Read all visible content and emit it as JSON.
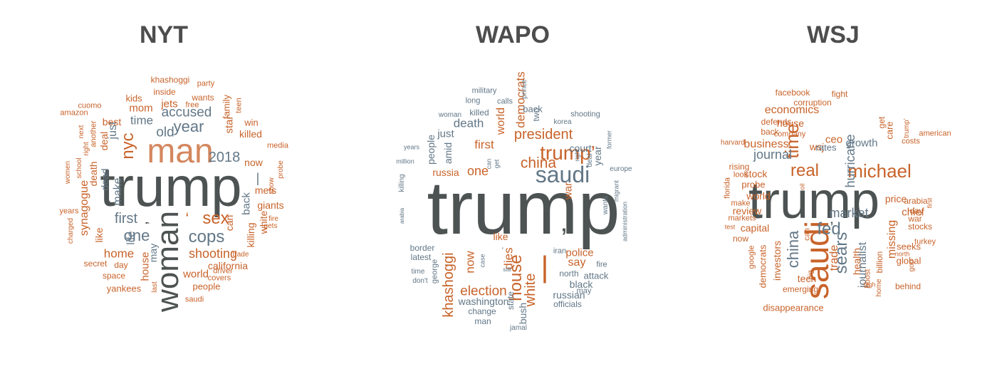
{
  "colors": {
    "orange": "#c8632a",
    "slate": "#627787",
    "dark": "#4d5352",
    "peach": "#d4875e"
  },
  "panels": [
    {
      "title": "NYT",
      "words": [
        {
          "t": "trump",
          "c": "dark"
        },
        {
          "t": "man",
          "c": "peach"
        },
        {
          "t": "woman",
          "c": "dark"
        },
        {
          "t": "sex",
          "c": "orange"
        },
        {
          "t": "cops",
          "c": "slate"
        },
        {
          "t": "‘",
          "c": "orange"
        },
        {
          "t": "first",
          "c": "slate"
        },
        {
          "t": "’",
          "c": "dark"
        },
        {
          "t": "one",
          "c": "slate"
        },
        {
          "t": "nyc",
          "c": "orange"
        },
        {
          "t": "year",
          "c": "slate"
        },
        {
          "t": "accused",
          "c": "slate"
        },
        {
          "t": "old",
          "c": "slate"
        },
        {
          "t": "2018",
          "c": "slate"
        },
        {
          "t": "time",
          "c": "slate"
        },
        {
          "t": "shooting",
          "c": "orange"
        },
        {
          "t": "home",
          "c": "orange"
        },
        {
          "t": "world",
          "c": "orange"
        },
        {
          "t": "california",
          "c": "orange"
        },
        {
          "t": "people",
          "c": "orange"
        },
        {
          "t": "synagogue",
          "c": "orange"
        },
        {
          "t": "death",
          "c": "orange"
        },
        {
          "t": "dead",
          "c": "slate"
        },
        {
          "t": "deal",
          "c": "orange"
        },
        {
          "t": "make",
          "c": "slate"
        },
        {
          "t": "just",
          "c": "slate"
        },
        {
          "t": "life",
          "c": "slate"
        },
        {
          "t": "like",
          "c": "orange"
        },
        {
          "t": "house",
          "c": "orange"
        },
        {
          "t": "may",
          "c": "slate"
        },
        {
          "t": "back",
          "c": "slate"
        },
        {
          "t": "|",
          "c": "slate"
        },
        {
          "t": "killing",
          "c": "orange"
        },
        {
          "t": "white",
          "c": "orange"
        },
        {
          "t": "giants",
          "c": "orange"
        },
        {
          "t": "mets",
          "c": "orange"
        },
        {
          "t": "can",
          "c": "orange"
        },
        {
          "t": "now",
          "c": "orange"
        },
        {
          "t": "star",
          "c": "orange"
        },
        {
          "t": "killed",
          "c": "orange"
        },
        {
          "t": "family",
          "c": "orange"
        },
        {
          "t": "teen",
          "c": "orange"
        },
        {
          "t": "win",
          "c": "orange"
        },
        {
          "t": "jets",
          "c": "orange"
        },
        {
          "t": "mom",
          "c": "orange"
        },
        {
          "t": "best",
          "c": "orange"
        },
        {
          "t": "kids",
          "c": "orange"
        },
        {
          "t": "inside",
          "c": "orange"
        },
        {
          "t": "wants",
          "c": "orange"
        },
        {
          "t": "free",
          "c": "orange"
        },
        {
          "t": "khashoggi",
          "c": "orange"
        },
        {
          "t": "party",
          "c": "orange"
        },
        {
          "t": "cuomo",
          "c": "orange"
        },
        {
          "t": "amazon",
          "c": "orange"
        },
        {
          "t": "another",
          "c": "orange"
        },
        {
          "t": "next",
          "c": "orange"
        },
        {
          "t": "right",
          "c": "orange"
        },
        {
          "t": "school",
          "c": "orange"
        },
        {
          "t": "women",
          "c": "orange"
        },
        {
          "t": "years",
          "c": "orange"
        },
        {
          "t": "charged",
          "c": "orange"
        },
        {
          "t": "secret",
          "c": "orange"
        },
        {
          "t": "day",
          "c": "orange"
        },
        {
          "t": "space",
          "c": "orange"
        },
        {
          "t": "yankees",
          "c": "orange"
        },
        {
          "t": "last",
          "c": "orange"
        },
        {
          "t": "saudi",
          "c": "orange"
        },
        {
          "t": "covers",
          "c": "orange"
        },
        {
          "t": "driver",
          "c": "orange"
        },
        {
          "t": "trade",
          "c": "orange"
        },
        {
          "t": "fire",
          "c": "orange"
        },
        {
          "t": "gets",
          "c": "orange"
        },
        {
          "t": "show",
          "c": "orange"
        },
        {
          "t": "probe",
          "c": "orange"
        },
        {
          "t": "media",
          "c": "orange"
        }
      ]
    },
    {
      "title": "WAPO",
      "words": [
        {
          "t": "trump",
          "c": "dark"
        },
        {
          "t": "saudi",
          "c": "slate"
        },
        {
          "t": "trump’",
          "c": "orange"
        },
        {
          "t": "china",
          "c": "orange"
        },
        {
          "t": "president",
          "c": "orange"
        },
        {
          "t": "’",
          "c": "dark"
        },
        {
          "t": "house",
          "c": "orange"
        },
        {
          "t": "white",
          "c": "orange"
        },
        {
          "t": "|",
          "c": "orange"
        },
        {
          "t": "election",
          "c": "orange"
        },
        {
          "t": "khashoggi",
          "c": "orange"
        },
        {
          "t": "now",
          "c": "orange"
        },
        {
          "t": "dies",
          "c": "orange"
        },
        {
          "t": "police",
          "c": "orange"
        },
        {
          "t": "say",
          "c": "orange"
        },
        {
          "t": "one",
          "c": "orange"
        },
        {
          "t": "first",
          "c": "orange"
        },
        {
          "t": "death",
          "c": "slate"
        },
        {
          "t": "democrats",
          "c": "orange"
        },
        {
          "t": "world",
          "c": "orange"
        },
        {
          "t": "war",
          "c": "orange"
        },
        {
          "t": "back",
          "c": "slate"
        },
        {
          "t": "court",
          "c": "slate"
        },
        {
          "t": "russia",
          "c": "orange"
        },
        {
          "t": "just",
          "c": "slate"
        },
        {
          "t": "amid",
          "c": "slate"
        },
        {
          "t": "people",
          "c": "slate"
        },
        {
          "t": "killed",
          "c": "slate"
        },
        {
          "t": "two",
          "c": "slate"
        },
        {
          "t": "shooting",
          "c": "slate"
        },
        {
          "t": "korea",
          "c": "slate"
        },
        {
          "t": "military",
          "c": "slate"
        },
        {
          "t": "long",
          "c": "slate"
        },
        {
          "t": "calls",
          "c": "slate"
        },
        {
          "t": "woman",
          "c": "slate"
        },
        {
          "t": "prince",
          "c": "slate"
        },
        {
          "t": "years",
          "c": "slate"
        },
        {
          "t": "million",
          "c": "slate"
        },
        {
          "t": "get",
          "c": "slate"
        },
        {
          "t": "can",
          "c": "slate"
        },
        {
          "t": "killing",
          "c": "slate"
        },
        {
          "t": "arabia",
          "c": "slate"
        },
        {
          "t": "year",
          "c": "slate"
        },
        {
          "t": "right",
          "c": "slate"
        },
        {
          "t": "deal",
          "c": "slate"
        },
        {
          "t": "former",
          "c": "slate"
        },
        {
          "t": "europe",
          "c": "slate"
        },
        {
          "t": "wants",
          "c": "slate"
        },
        {
          "t": "migrant",
          "c": "slate"
        },
        {
          "t": "administration",
          "c": "slate"
        },
        {
          "t": "border",
          "c": "slate"
        },
        {
          "t": "latest",
          "c": "slate"
        },
        {
          "t": "time",
          "c": "slate"
        },
        {
          "t": "don't",
          "c": "slate"
        },
        {
          "t": "george",
          "c": "slate"
        },
        {
          "t": "case",
          "c": "slate"
        },
        {
          "t": "like",
          "c": "orange"
        },
        {
          "t": "‘",
          "c": "dark"
        },
        {
          "t": "still",
          "c": "slate"
        },
        {
          "t": "iran",
          "c": "slate"
        },
        {
          "t": "fire",
          "c": "slate"
        },
        {
          "t": "attack",
          "c": "slate"
        },
        {
          "t": "north",
          "c": "slate"
        },
        {
          "t": "black",
          "c": "slate"
        },
        {
          "t": "may",
          "c": "slate"
        },
        {
          "t": "russian",
          "c": "slate"
        },
        {
          "t": "officials",
          "c": "slate"
        },
        {
          "t": "washington",
          "c": "slate"
        },
        {
          "t": "change",
          "c": "slate"
        },
        {
          "t": "man",
          "c": "slate"
        },
        {
          "t": "state",
          "c": "slate"
        },
        {
          "t": "bush",
          "c": "slate"
        },
        {
          "t": "jamal",
          "c": "slate"
        },
        {
          "t": "trade",
          "c": "slate"
        },
        {
          "t": "dead",
          "c": "slate"
        }
      ]
    },
    {
      "title": "WSJ",
      "words": [
        {
          "t": "trump",
          "c": "dark"
        },
        {
          "t": "saudi",
          "c": "orange"
        },
        {
          "t": "michael",
          "c": "orange"
        },
        {
          "t": "real",
          "c": "orange"
        },
        {
          "t": "time",
          "c": "orange"
        },
        {
          "t": "china",
          "c": "slate"
        },
        {
          "t": "fed",
          "c": "slate"
        },
        {
          "t": "sears",
          "c": "slate"
        },
        {
          "t": "hurricane",
          "c": "slate"
        },
        {
          "t": "market",
          "c": "slate"
        },
        {
          "t": "journal",
          "c": "slate"
        },
        {
          "t": "economics",
          "c": "orange"
        },
        {
          "t": "business",
          "c": "orange"
        },
        {
          "t": "house",
          "c": "orange"
        },
        {
          "t": "wsj",
          "c": "orange"
        },
        {
          "t": "rates",
          "c": "slate"
        },
        {
          "t": "ceo",
          "c": "orange"
        },
        {
          "t": "growth",
          "c": "slate"
        },
        {
          "t": "trade",
          "c": "orange"
        },
        {
          "t": "health",
          "c": "orange"
        },
        {
          "t": "journalist",
          "c": "slate"
        },
        {
          "t": "missing",
          "c": "orange"
        },
        {
          "t": "chief",
          "c": "orange"
        },
        {
          "t": "price",
          "c": "orange"
        },
        {
          "t": "world",
          "c": "orange"
        },
        {
          "t": "stock",
          "c": "orange"
        },
        {
          "t": "capital",
          "c": "orange"
        },
        {
          "t": "review",
          "c": "orange"
        },
        {
          "t": "probe",
          "c": "orange"
        },
        {
          "t": "investors",
          "c": "orange"
        },
        {
          "t": "democrats",
          "c": "orange"
        },
        {
          "t": "tech",
          "c": "orange"
        },
        {
          "t": "emerging",
          "c": "orange"
        },
        {
          "t": "disappearance",
          "c": "orange"
        },
        {
          "t": "billion",
          "c": "orange"
        },
        {
          "t": "seeks",
          "c": "orange"
        },
        {
          "t": "global",
          "c": "orange"
        },
        {
          "t": "behind",
          "c": "orange"
        },
        {
          "t": "stocks",
          "c": "orange"
        },
        {
          "t": "war",
          "c": "orange"
        },
        {
          "t": "day",
          "c": "orange"
        },
        {
          "t": "arabia",
          "c": "orange"
        },
        {
          "t": "costs",
          "c": "orange"
        },
        {
          "t": "american",
          "c": "orange"
        },
        {
          "t": "facebook",
          "c": "orange"
        },
        {
          "t": "fight",
          "c": "orange"
        },
        {
          "t": "corruption",
          "c": "orange"
        },
        {
          "t": "defends",
          "c": "orange"
        },
        {
          "t": "back",
          "c": "orange"
        },
        {
          "t": "company",
          "c": "orange"
        },
        {
          "t": "harvard",
          "c": "orange"
        },
        {
          "t": "rising",
          "c": "orange"
        },
        {
          "t": "look",
          "c": "orange"
        },
        {
          "t": "florida",
          "c": "orange"
        },
        {
          "t": "make",
          "c": "orange"
        },
        {
          "t": "markets",
          "c": "orange"
        },
        {
          "t": "test",
          "c": "orange"
        },
        {
          "t": "now",
          "c": "orange"
        },
        {
          "t": "google",
          "c": "orange"
        },
        {
          "t": "can",
          "c": "orange"
        },
        {
          "t": "big",
          "c": "orange"
        },
        {
          "t": "boost",
          "c": "orange"
        },
        {
          "t": "home",
          "c": "orange"
        },
        {
          "t": "gop",
          "c": "orange"
        },
        {
          "t": "north",
          "c": "orange"
        },
        {
          "t": "turkey",
          "c": "orange"
        },
        {
          "t": "first",
          "c": "orange"
        },
        {
          "t": "get",
          "c": "orange"
        },
        {
          "t": "care",
          "c": "orange"
        },
        {
          "t": "trump’",
          "c": "orange"
        },
        {
          "t": "’",
          "c": "dark"
        },
        {
          "t": "oil",
          "c": "orange"
        },
        {
          "t": "high",
          "c": "orange"
        }
      ]
    }
  ]
}
